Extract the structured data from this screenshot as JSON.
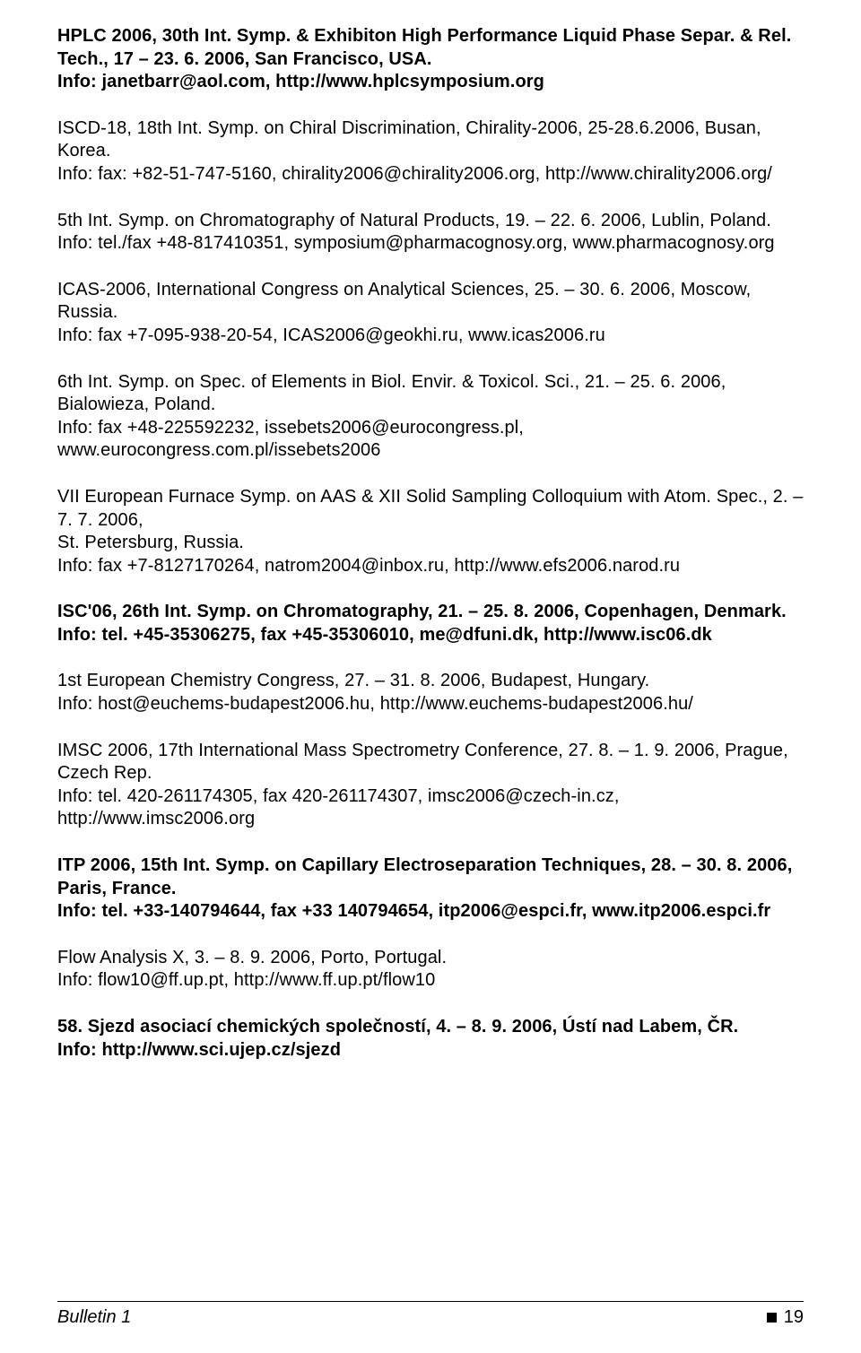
{
  "entries": [
    {
      "bold": true,
      "l1": "HPLC 2006, 30th Int. Symp. & Exhibiton High Performance Liquid Phase Separ. & Rel. Tech., 17 – 23. 6. 2006, San Francisco, USA.",
      "l2": "Info: janetbarr@aol.com, http://www.hplcsymposium.org"
    },
    {
      "bold": false,
      "l1": "ISCD-18, 18th Int. Symp. on Chiral Discrimination, Chirality-2006, 25-28.6.2006, Busan, Korea.",
      "l2": "Info: fax: +82-51-747-5160, chirality2006@chirality2006.org, http://www.chirality2006.org/"
    },
    {
      "bold": false,
      "l1": "5th Int. Symp. on Chromatography of Natural Products, 19. – 22. 6. 2006, Lublin, Poland.",
      "l2": "Info: tel./fax +48-817410351, symposium@pharmacognosy.org, www.pharmacognosy.org"
    },
    {
      "bold": false,
      "l1": "ICAS-2006, International Congress on Analytical Sciences, 25. – 30. 6. 2006, Moscow, Russia.",
      "l2": "Info: fax +7-095-938-20-54, ICAS2006@geokhi.ru, www.icas2006.ru"
    },
    {
      "bold": false,
      "l1": "6th Int. Symp. on Spec. of Elements in Biol. Envir. & Toxicol. Sci., 21. – 25. 6. 2006, Bialowieza, Poland.",
      "l2": "Info: fax +48-225592232, issebets2006@eurocongress.pl, www.eurocongress.com.pl/issebets2006"
    },
    {
      "bold": false,
      "l1": "VII European Furnace Symp. on AAS & XII Solid Sampling Colloquium with Atom. Spec., 2. – 7. 7. 2006,",
      "l2": "St. Petersburg, Russia.",
      "l3": "Info: fax +7-8127170264, natrom2004@inbox.ru, http://www.efs2006.narod.ru"
    },
    {
      "bold": true,
      "l1": "ISC'06, 26th Int. Symp. on Chromatography, 21. – 25. 8. 2006, Copenhagen, Denmark.",
      "l2": "Info: tel. +45-35306275, fax +45-35306010, me@dfuni.dk, http://www.isc06.dk"
    },
    {
      "bold": false,
      "l1": "1st European Chemistry Congress, 27. – 31. 8. 2006, Budapest, Hungary.",
      "l2": "Info: host@euchems-budapest2006.hu, http://www.euchems-budapest2006.hu/"
    },
    {
      "bold": false,
      "l1": "IMSC 2006, 17th International Mass Spectrometry Conference, 27. 8. – 1. 9. 2006, Prague, Czech Rep.",
      "l2": "Info: tel. 420-261174305, fax 420-261174307, imsc2006@czech-in.cz, http://www.imsc2006.org"
    },
    {
      "bold": true,
      "l1": "ITP 2006, 15th Int. Symp. on Capillary Electroseparation Techniques, 28. – 30. 8. 2006, Paris, France.",
      "l2": "Info: tel. +33-140794644, fax +33 140794654, itp2006@espci.fr, www.itp2006.espci.fr"
    },
    {
      "bold": false,
      "l1": "Flow Analysis X, 3. – 8. 9. 2006, Porto, Portugal.",
      "l2": "Info: flow10@ff.up.pt, http://www.ff.up.pt/flow10"
    },
    {
      "bold": true,
      "l1": "58. Sjezd asociací chemických společností, 4. – 8. 9. 2006, Ústí nad Labem, ČR.",
      "l2": "Info: http://www.sci.ujep.cz/sjezd"
    }
  ],
  "footer": {
    "left": "Bulletin 1",
    "page": "19"
  }
}
